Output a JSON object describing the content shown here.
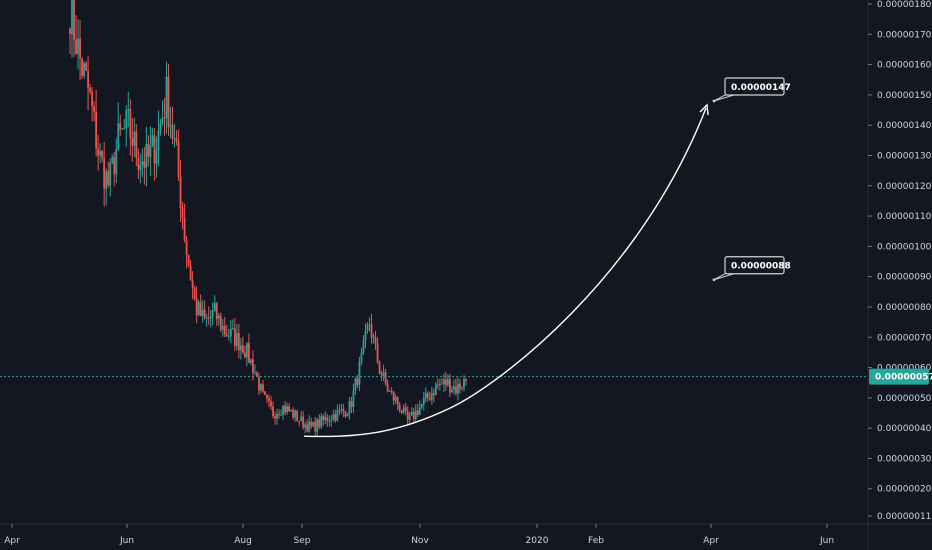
{
  "chart_data": {
    "type": "candlestick",
    "ylim": [
      1e-07,
      1.81e-06
    ],
    "y_ticks": [
      "0.00000180",
      "0.00000170",
      "0.00000160",
      "0.00000150",
      "0.00000140",
      "0.00000130",
      "0.00000120",
      "0.00000110",
      "0.00000100",
      "0.00000090",
      "0.00000080",
      "0.00000070",
      "0.00000060",
      "0.00000050",
      "0.00000040",
      "0.00000030",
      "0.00000020",
      "0.00000011"
    ],
    "x_ticks": [
      "Apr",
      "Jun",
      "Aug",
      "Sep",
      "Nov",
      "2020",
      "Feb",
      "Apr",
      "Jun"
    ],
    "current_price": {
      "label": "0.00000057",
      "value": 5.7e-07
    },
    "annotations": [
      {
        "label": "0.00000147",
        "value": 1.47e-06
      },
      {
        "label": "0.00000088",
        "value": 8.8e-07
      }
    ],
    "trend_curve": {
      "description_points": [
        [
          4e-07,
          4e-07
        ]
      ]
    },
    "colors": {
      "up": "#26a69a",
      "down": "#ef5350",
      "background": "#131722",
      "price_line": "#26a69a",
      "axis_text": "#d1d4dc",
      "curve": "#ffffff"
    },
    "series_close_anchors": [
      1.79e-06,
      1.62e-06,
      1.5e-06,
      1.3e-06,
      1.2e-06,
      1.35e-06,
      1.4e-06,
      1.3e-06,
      1.28e-06,
      1.35e-06,
      1.5e-06,
      1.3e-06,
      1e-06,
      8e-07,
      7.5e-07,
      7.8e-07,
      7.2e-07,
      7e-07,
      6.7e-07,
      6e-07,
      5e-07,
      4.5e-07,
      4.7e-07,
      4.5e-07,
      4.2e-07,
      4e-07,
      4.2e-07,
      4.4e-07,
      4.5e-07,
      4.7e-07,
      6e-07,
      7.5e-07,
      6e-07,
      5.2e-07,
      4.8e-07,
      4.2e-07,
      4.6e-07,
      5e-07,
      5.4e-07,
      5.5e-07,
      5.3e-07,
      5.6e-07
    ]
  }
}
